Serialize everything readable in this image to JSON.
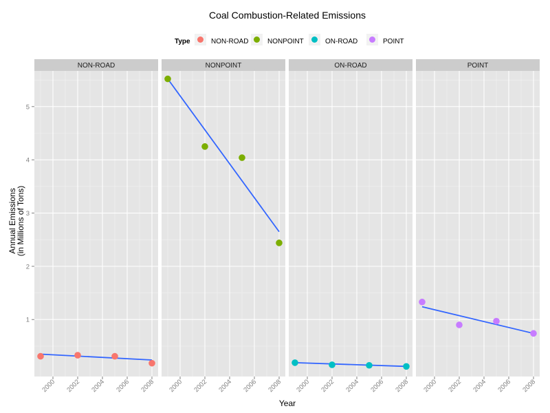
{
  "chart_data": {
    "type": "scatter",
    "title": "Coal Combustion-Related Emissions",
    "xlabel": "Year",
    "ylabel_lines": [
      "Annual Emissions",
      "(in Millions of Tons)"
    ],
    "legend_title": "Type",
    "legend_position": "top",
    "grid": true,
    "xlim": [
      1998.5,
      2008.5
    ],
    "ylim": [
      -0.07,
      5.67
    ],
    "x_ticks": [
      2000,
      2002,
      2004,
      2006,
      2008
    ],
    "x_tick_labels": [
      "2000",
      "2002",
      "2004",
      "2006",
      "2008"
    ],
    "y_ticks": [
      1,
      2,
      3,
      4,
      5
    ],
    "y_tick_labels": [
      "1",
      "2",
      "3",
      "4",
      "5"
    ],
    "panels": [
      {
        "name": "NON-ROAD",
        "color": "#f8766d",
        "x": [
          1999,
          2002,
          2005,
          2008
        ],
        "y": [
          0.31,
          0.33,
          0.31,
          0.18
        ],
        "trend": {
          "x": [
            1999,
            2008
          ],
          "y": [
            0.35,
            0.24
          ]
        }
      },
      {
        "name": "NONPOINT",
        "color": "#7cae00",
        "x": [
          1999,
          2002,
          2005,
          2008
        ],
        "y": [
          5.52,
          4.25,
          4.04,
          2.44
        ],
        "trend": {
          "x": [
            1999,
            2008
          ],
          "y": [
            5.52,
            2.65
          ]
        }
      },
      {
        "name": "ON-ROAD",
        "color": "#00bfc4",
        "x": [
          1999,
          2002,
          2005,
          2008
        ],
        "y": [
          0.19,
          0.15,
          0.14,
          0.12
        ],
        "trend": {
          "x": [
            1999,
            2008
          ],
          "y": [
            0.19,
            0.12
          ]
        }
      },
      {
        "name": "POINT",
        "color": "#c77cff",
        "x": [
          1999,
          2002,
          2005,
          2008
        ],
        "y": [
          1.33,
          0.9,
          0.97,
          0.74
        ],
        "trend": {
          "x": [
            1999,
            2008
          ],
          "y": [
            1.24,
            0.74
          ]
        }
      }
    ],
    "trend_color": "#3366ff",
    "panel_background": "#e5e5e5",
    "strip_background": "#cccccc",
    "grid_color": "#ffffff"
  }
}
